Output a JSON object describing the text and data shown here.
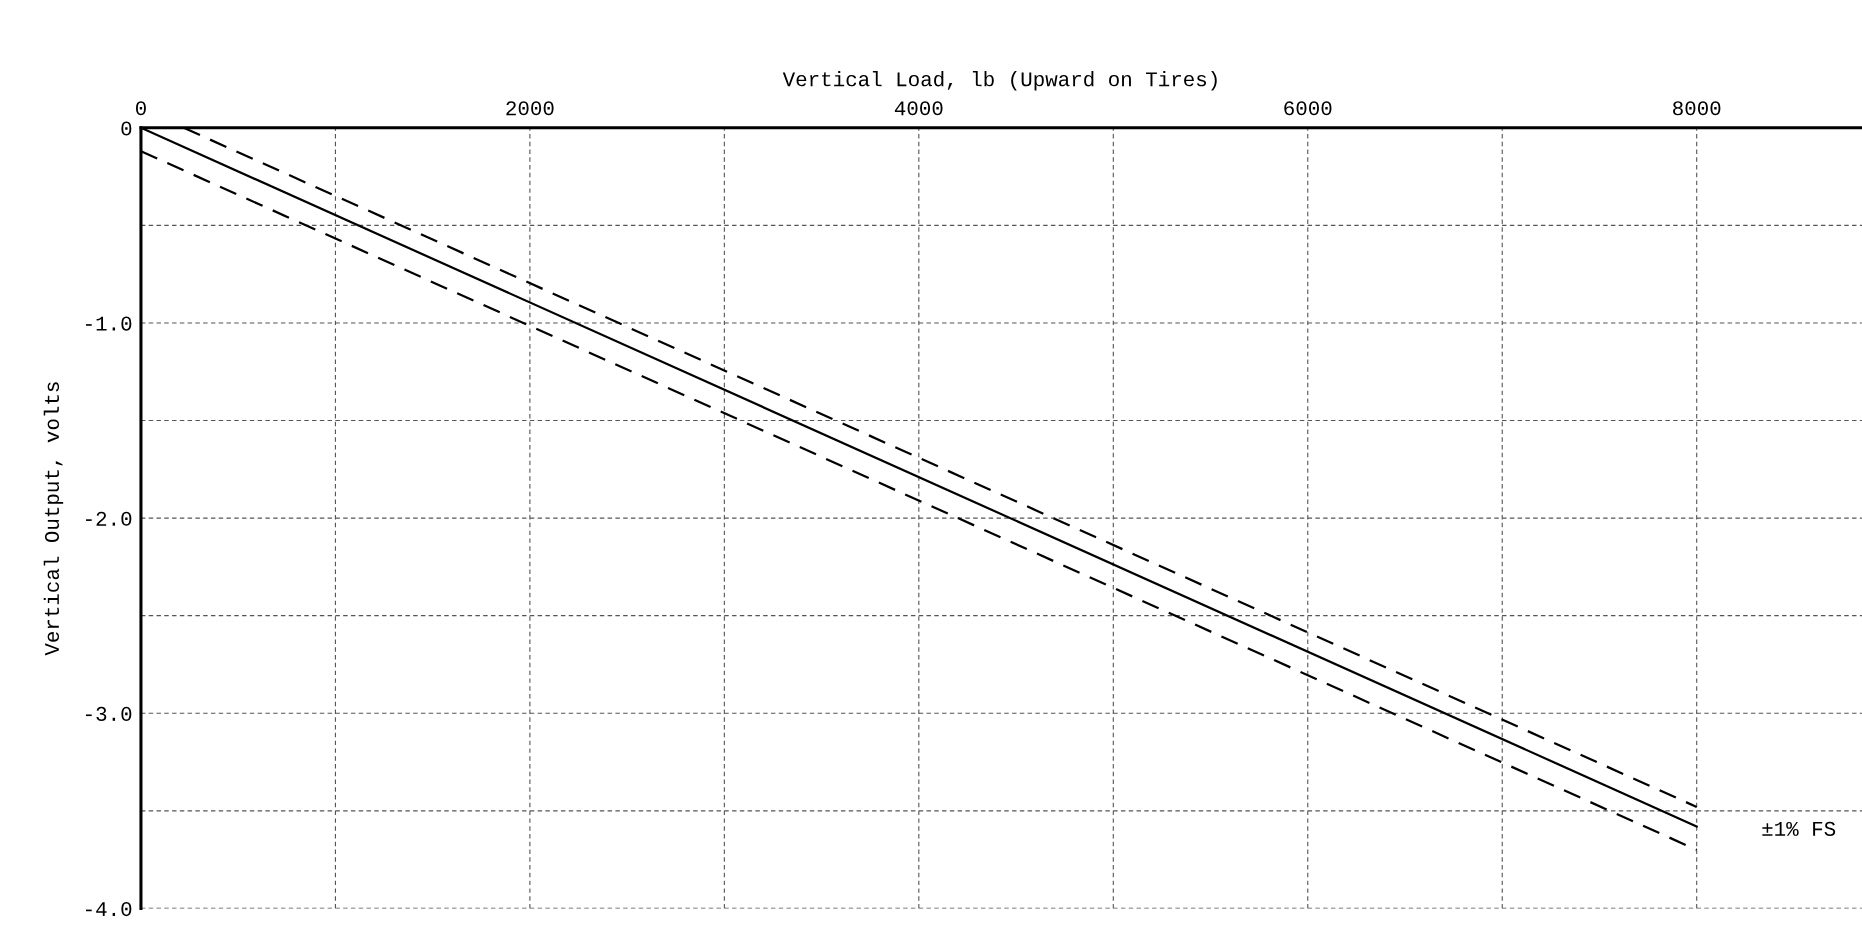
{
  "chart_data": {
    "type": "line",
    "xlabel": "Vertical Load, lb (Upward on Tires)",
    "ylabel": "Vertical Output, volts",
    "xlim": [
      0,
      8850
    ],
    "ylim": [
      -4.0,
      0
    ],
    "xticks": [
      0,
      {
        "value": 1000,
        "label": null
      },
      2000,
      {
        "value": 3000,
        "label": null
      },
      4000,
      {
        "value": 5000,
        "label": null
      },
      6000,
      {
        "value": 7000,
        "label": null
      },
      8000
    ],
    "yticks": [
      {
        "value": 0,
        "label": "0"
      },
      {
        "value": -0.5,
        "label": null
      },
      {
        "value": -1.0,
        "label": "-1.0"
      },
      {
        "value": -1.5,
        "label": null
      },
      {
        "value": -2.0,
        "label": "-2.0"
      },
      {
        "value": -2.5,
        "label": null
      },
      {
        "value": -3.0,
        "label": "-3.0"
      },
      {
        "value": -3.5,
        "label": null
      },
      {
        "value": -4.0,
        "label": "-4.0"
      }
    ],
    "grid": true,
    "marker": "none",
    "series": [
      {
        "x": [
          0,
          8000
        ],
        "values": [
          0,
          -3.58
        ],
        "color": "#000000",
        "line_style": "solid"
      },
      {
        "x": [
          220,
          8000
        ],
        "values": [
          0,
          -3.48
        ],
        "color": "#000000",
        "line_style": "dashed"
      },
      {
        "x": [
          0,
          8000
        ],
        "values": [
          -0.12,
          -3.7
        ],
        "color": "#000000",
        "line_style": "dashed"
      }
    ],
    "annotations": [
      "±1% FS"
    ]
  }
}
